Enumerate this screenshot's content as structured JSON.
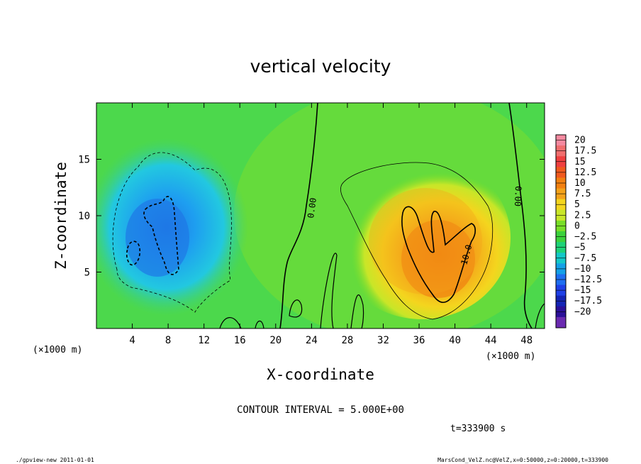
{
  "chart_data": {
    "type": "heatmap",
    "title": "vertical velocity",
    "xlabel": "X-coordinate",
    "ylabel": "Z-coordinate",
    "x_unit_left": "(×1000 m)",
    "x_unit_right": "(×1000 m)",
    "x_ticks": [
      "4",
      "8",
      "12",
      "16",
      "20",
      "24",
      "28",
      "32",
      "36",
      "40",
      "44",
      "48"
    ],
    "y_ticks": [
      "5",
      "10",
      "15"
    ],
    "xlim": [
      0,
      50
    ],
    "ylim": [
      0,
      20
    ],
    "colorbar": {
      "levels": [
        "20",
        "17.5",
        "15",
        "12.5",
        "10",
        "7.5",
        "5",
        "2.5",
        "0",
        "−2.5",
        "−5",
        "−7.5",
        "−10",
        "−12.5",
        "−15",
        "−17.5",
        "−20"
      ],
      "colors": [
        "#f48aa0",
        "#f06e6e",
        "#ef4040",
        "#f05a1e",
        "#f28010",
        "#f4a21a",
        "#f4d51e",
        "#c8e628",
        "#78de28",
        "#3cd23c",
        "#1ed278",
        "#14c8c8",
        "#14a0e6",
        "#1e6ef0",
        "#1e40e6",
        "#1424b4",
        "#2a0f98",
        "#6a2ab0"
      ]
    },
    "contour_labels": [
      "0.00",
      "0.00",
      "10.0"
    ],
    "contour_interval": "CONTOUR INTERVAL = 5.000E+00",
    "time_label": "t=333900 s"
  },
  "footer": {
    "left": "./gpview-new  2011-01-01",
    "right": "MarsCond_VelZ.nc@VelZ,x=0:50000,z=0:20000,t=333900"
  }
}
